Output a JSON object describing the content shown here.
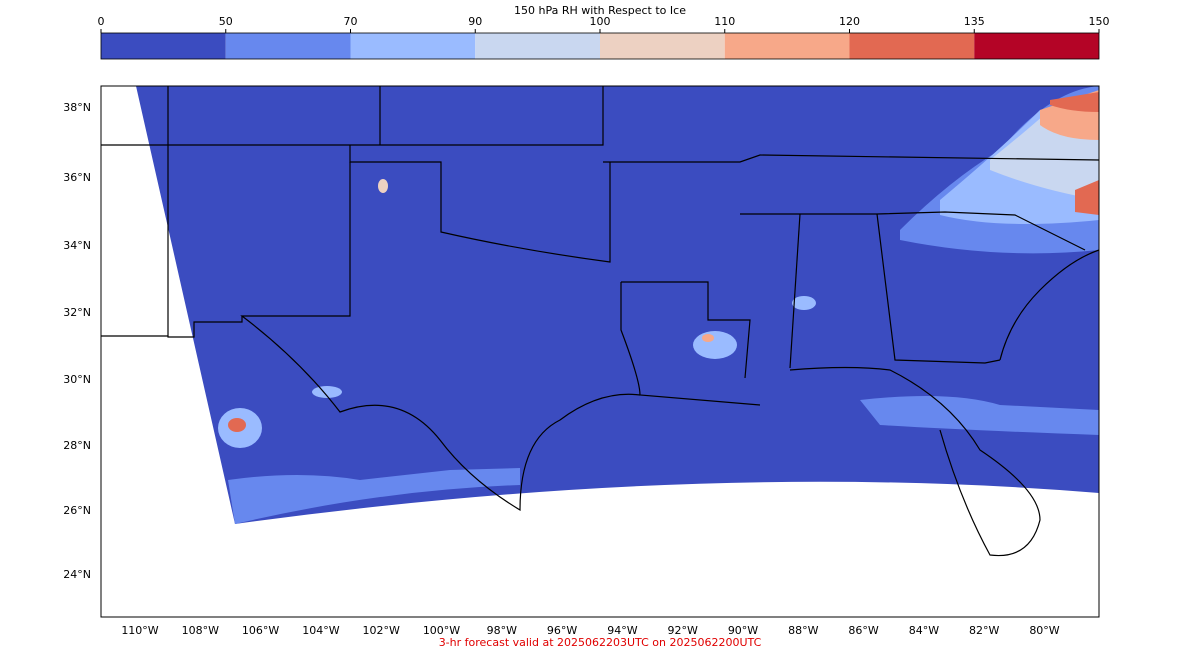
{
  "colorbar": {
    "title": "150 hPa RH with Respect to Ice",
    "ticks": [
      0,
      50,
      70,
      90,
      100,
      110,
      120,
      135,
      150
    ],
    "colors": [
      "#3b4cc0",
      "#6788ee",
      "#9abbff",
      "#c9d7f0",
      "#edd1c2",
      "#f7a889",
      "#e26952",
      "#b40426"
    ]
  },
  "map": {
    "lat_labels": [
      "38°N",
      "36°N",
      "34°N",
      "32°N",
      "30°N",
      "28°N",
      "26°N",
      "24°N"
    ],
    "lon_labels": [
      "110°W",
      "108°W",
      "106°W",
      "104°W",
      "102°W",
      "100°W",
      "98°W",
      "96°W",
      "94°W",
      "92°W",
      "90°W",
      "88°W",
      "86°W",
      "84°W",
      "82°W",
      "80°W"
    ]
  },
  "footer": "3-hr forecast valid at 2025062203UTC on 2025062200UTC"
}
